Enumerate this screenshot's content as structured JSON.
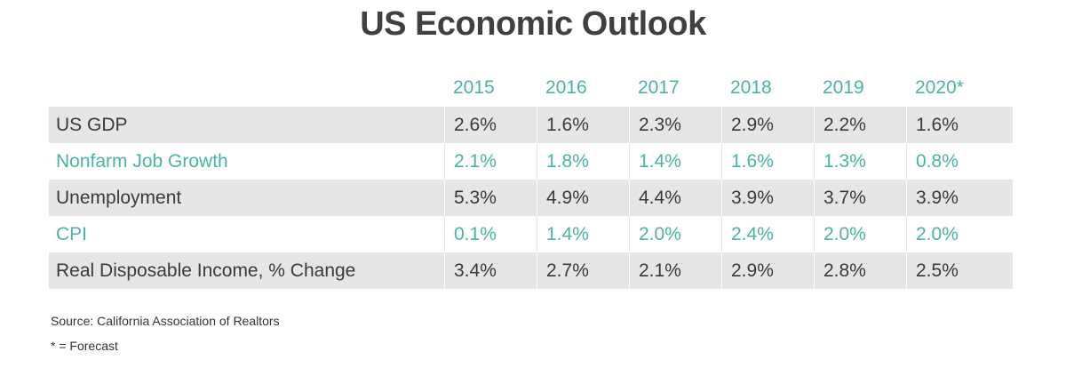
{
  "title": "US Economic Outlook",
  "colors": {
    "accent": "#4bb3a5",
    "text_dark": "#3a3a3a",
    "row_shade": "#e6e6e6"
  },
  "chart_data": {
    "type": "table",
    "title": "US Economic Outlook",
    "columns": [
      "2015",
      "2016",
      "2017",
      "2018",
      "2019",
      "2020*"
    ],
    "rows": [
      {
        "label": "US GDP",
        "values": [
          "2.6%",
          "1.6%",
          "2.3%",
          "2.9%",
          "2.2%",
          "1.6%"
        ]
      },
      {
        "label": "Nonfarm Job Growth",
        "values": [
          "2.1%",
          "1.8%",
          "1.4%",
          "1.6%",
          "1.3%",
          "0.8%"
        ]
      },
      {
        "label": "Unemployment",
        "values": [
          "5.3%",
          "4.9%",
          "4.4%",
          "3.9%",
          "3.7%",
          "3.9%"
        ]
      },
      {
        "label": "CPI",
        "values": [
          "0.1%",
          "1.4%",
          "2.0%",
          "2.4%",
          "2.0%",
          "2.0%"
        ]
      },
      {
        "label": "Real Disposable Income, % Change",
        "values": [
          "3.4%",
          "2.7%",
          "2.1%",
          "2.9%",
          "2.8%",
          "2.5%"
        ]
      }
    ]
  },
  "footer": {
    "source": "Source:  California Association of Realtors",
    "forecast_note": "* = Forecast"
  }
}
